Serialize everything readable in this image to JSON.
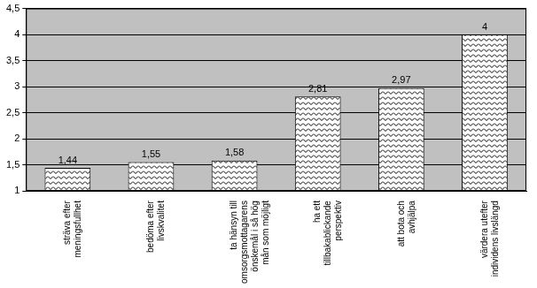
{
  "chart_data": {
    "type": "bar",
    "categories": [
      "sträva efter meningsfullhet",
      "bedöma efter livskvalitet",
      "ta hänsyn till omsorgsmottagarens önskemål i så hög mån som möjligt",
      "ha ett tillbakablickande perspektiv",
      "att bota och avhjälpa",
      "värdera utefter individens livslängd"
    ],
    "values": [
      1.44,
      1.55,
      1.58,
      2.81,
      2.97,
      4
    ],
    "value_labels": [
      "1,44",
      "1,55",
      "1,58",
      "2,81",
      "2,97",
      "4"
    ],
    "color": "#000000",
    "ylim": [
      1,
      4.5
    ],
    "yticks": [
      1,
      {
        "value": 1.5,
        "label": "1,5"
      },
      2,
      {
        "value": 2.5,
        "label": "2,5"
      },
      3,
      {
        "value": 3.5,
        "label": "3,5"
      },
      4,
      {
        "value": 4.5,
        "label": "4,5"
      }
    ],
    "grid": true,
    "data_labels": true
  }
}
